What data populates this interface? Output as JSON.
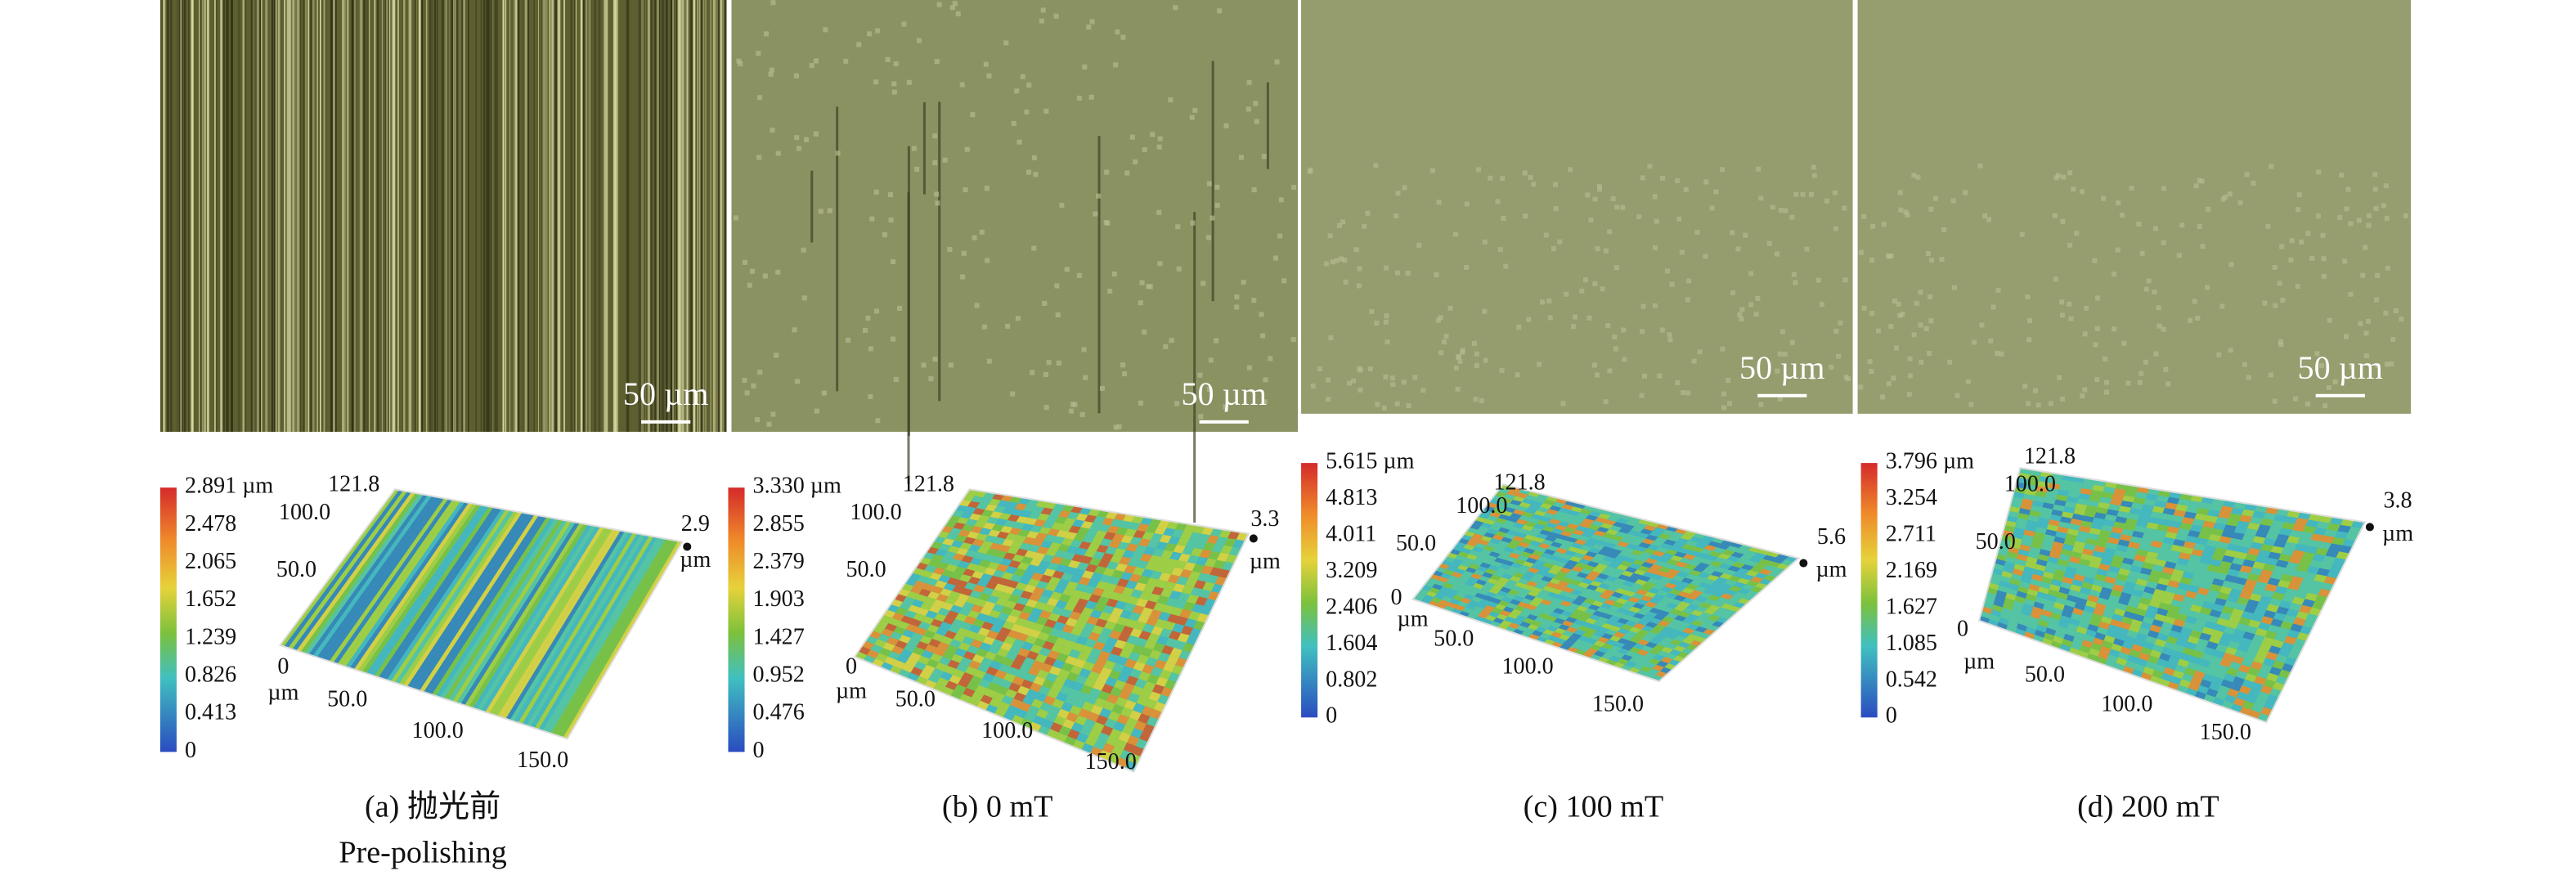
{
  "panels": [
    {
      "scale_bar": "50 µm",
      "colorbar_labels": [
        "2.891 µm",
        "2.478",
        "2.065",
        "1.652",
        "1.239",
        "0.826",
        "0.413",
        "0"
      ],
      "z_max": "2.9",
      "z_unit": "µm",
      "axis_labels": {
        "y_max": "121.8",
        "y_mid": "100.0",
        "y_low": "50.0",
        "origin": "0",
        "origin_unit": "µm",
        "x1": "50.0",
        "x2": "100.0",
        "x3": "150.0"
      },
      "caption": "(a) 抛光前",
      "subcaption": "Pre-polishing"
    },
    {
      "scale_bar": "50 µm",
      "colorbar_labels": [
        "3.330 µm",
        "2.855",
        "2.379",
        "1.903",
        "1.427",
        "0.952",
        "0.476",
        "0"
      ],
      "z_max": "3.3",
      "z_unit": "µm",
      "axis_labels": {
        "y_max": "121.8",
        "y_mid": "100.0",
        "y_low": "50.0",
        "origin": "0",
        "origin_unit": "µm",
        "x1": "50.0",
        "x2": "100.0",
        "x3": "150.0"
      },
      "caption": "(b) 0 mT"
    },
    {
      "scale_bar": "50 µm",
      "colorbar_labels": [
        "5.615 µm",
        "4.813",
        "4.011",
        "3.209",
        "2.406",
        "1.604",
        "0.802",
        "0"
      ],
      "z_max": "5.6",
      "z_unit": "µm",
      "axis_labels": {
        "y_max": "121.8",
        "y_mid": "100.0",
        "y_low": "50.0",
        "origin": "0",
        "origin_unit": "µm",
        "x1": "50.0",
        "x2": "100.0",
        "x3": "150.0"
      },
      "caption": "(c) 100 mT"
    },
    {
      "scale_bar": "50 µm",
      "colorbar_labels": [
        "3.796 µm",
        "3.254",
        "2.711",
        "2.169",
        "1.627",
        "1.085",
        "0.542",
        "0"
      ],
      "z_max": "3.8",
      "z_unit": "µm",
      "axis_labels": {
        "y_max": "121.8",
        "y_mid": "100.0",
        "y_low": "50.0",
        "origin": "0",
        "origin_unit": "µm",
        "x1": "50.0",
        "x2": "100.0",
        "x3": "150.0"
      },
      "caption": "(d) 200 mT"
    }
  ]
}
